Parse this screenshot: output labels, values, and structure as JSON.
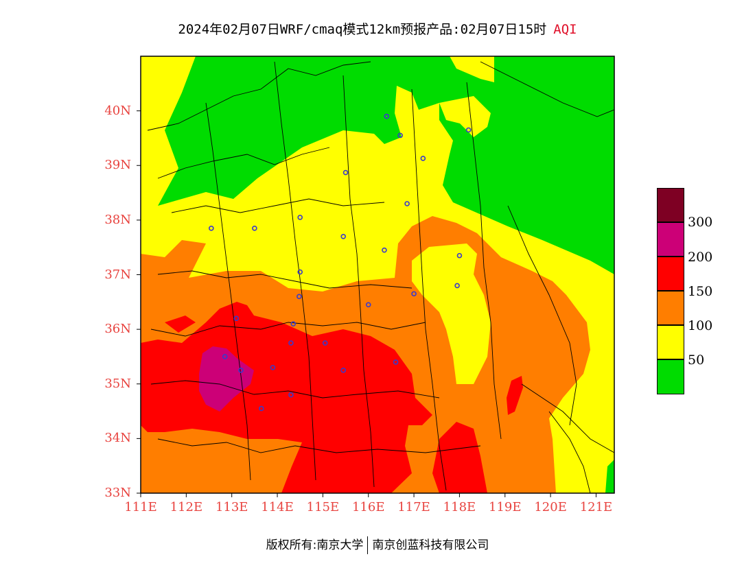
{
  "title": {
    "main": "2024年02月07日WRF/cmaq模式12km预报产品:02月07日15时",
    "variable": "AQI"
  },
  "map": {
    "lat_ticks": [
      "40N",
      "39N",
      "38N",
      "37N",
      "36N",
      "35N",
      "34N",
      "33N"
    ],
    "lon_ticks": [
      "111E",
      "112E",
      "113E",
      "114E",
      "115E",
      "116E",
      "117E",
      "118E",
      "119E",
      "120E",
      "121E"
    ],
    "lon_range": [
      111,
      121.4
    ],
    "lat_range": [
      33,
      41
    ]
  },
  "legend": {
    "labels": [
      "300",
      "200",
      "150",
      "100",
      "50"
    ],
    "colors": {
      "band_0_50": "#00dc00",
      "band_50_100": "#ffff00",
      "band_100_150": "#ff7e00",
      "band_150_200": "#ff0000",
      "band_200_300": "#cc0077",
      "band_300_plus": "#7e0023"
    }
  },
  "cities": [
    [
      116.4,
      39.9
    ],
    [
      116.7,
      39.55
    ],
    [
      118.2,
      39.65
    ],
    [
      117.2,
      39.13
    ],
    [
      115.5,
      38.87
    ],
    [
      116.85,
      38.3
    ],
    [
      112.55,
      37.85
    ],
    [
      113.5,
      37.85
    ],
    [
      114.5,
      38.05
    ],
    [
      115.45,
      37.7
    ],
    [
      116.35,
      37.45
    ],
    [
      118.0,
      37.35
    ],
    [
      117.95,
      36.8
    ],
    [
      114.5,
      37.05
    ],
    [
      117.0,
      36.65
    ],
    [
      114.48,
      36.6
    ],
    [
      116.0,
      36.45
    ],
    [
      113.1,
      36.2
    ],
    [
      114.35,
      36.1
    ],
    [
      114.3,
      35.75
    ],
    [
      115.05,
      35.75
    ],
    [
      112.85,
      35.5
    ],
    [
      113.2,
      35.25
    ],
    [
      113.9,
      35.3
    ],
    [
      115.45,
      35.25
    ],
    [
      116.6,
      35.4
    ],
    [
      114.3,
      34.8
    ],
    [
      113.65,
      34.55
    ]
  ],
  "footer": {
    "copyright": "版权所有:南京大学",
    "company": "南京创蓝科技有限公司"
  }
}
